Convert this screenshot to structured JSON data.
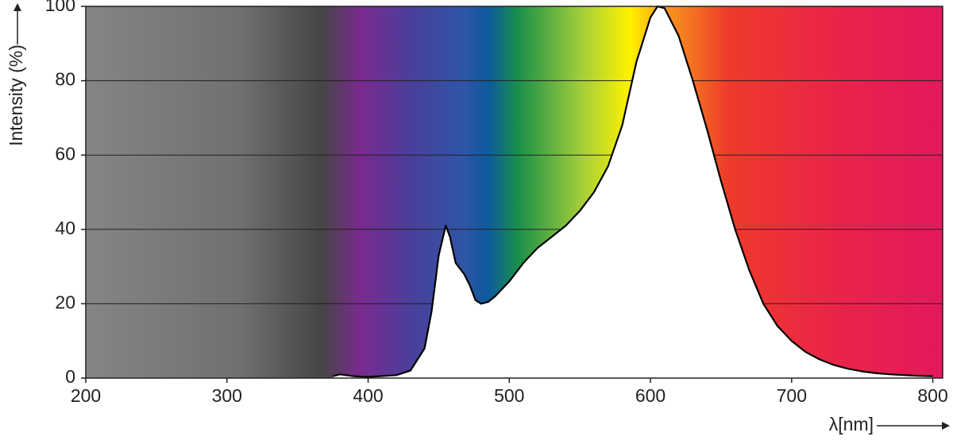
{
  "chart_data": {
    "type": "area",
    "ylabel": "Intensity (%)",
    "xlabel": "λ[nm]",
    "x": [
      375,
      380,
      390,
      400,
      420,
      430,
      440,
      445,
      450,
      455,
      458,
      462,
      468,
      472,
      476,
      480,
      485,
      490,
      500,
      510,
      520,
      530,
      540,
      550,
      560,
      570,
      580,
      590,
      600,
      605,
      610,
      620,
      630,
      640,
      650,
      660,
      670,
      680,
      690,
      700,
      710,
      720,
      730,
      740,
      750,
      760,
      770,
      780,
      790,
      800
    ],
    "values": [
      0.5,
      1,
      0.5,
      0.3,
      0.8,
      2,
      8,
      18,
      33,
      41,
      38,
      31,
      28,
      25,
      21,
      20,
      20.5,
      22,
      26,
      31,
      35,
      38,
      41,
      45,
      50,
      57,
      68,
      85,
      97,
      100,
      99.5,
      92,
      80,
      67,
      53,
      40,
      29,
      20,
      14,
      10,
      7,
      5,
      3.5,
      2.5,
      1.8,
      1.3,
      1,
      0.8,
      0.6,
      0.5
    ],
    "color": "#000000",
    "fill": "#ffffff",
    "xlim": [
      200,
      807
    ],
    "xticks": [
      200,
      300,
      400,
      500,
      600,
      700,
      800
    ],
    "ylim": [
      0,
      100
    ],
    "yticks": [
      0,
      20,
      40,
      60,
      80,
      100
    ],
    "grid": true
  }
}
